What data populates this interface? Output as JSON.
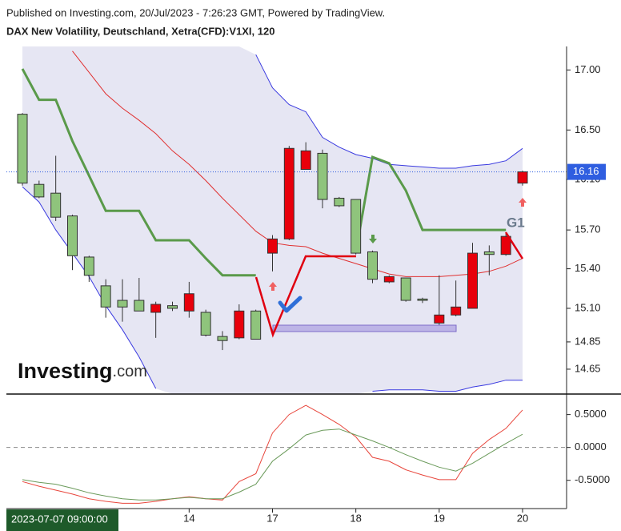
{
  "header": {
    "published": "Published on Investing.com, 20/Jul/2023 - 7:26:23 GMT, Powered by TradingView.",
    "symbol": "DAX New Volatility, Deutschland, Xetra(CFD):V1XI, 120"
  },
  "watermark": {
    "brand": "Investing",
    "suffix": ".com"
  },
  "crosshair_label": "2023-07-07 09:00:00",
  "chart_data": [
    {
      "type": "candlestick",
      "log_scale": true,
      "open": [
        16.63,
        16.06,
        15.99,
        15.81,
        15.49,
        15.27,
        15.16,
        15.16,
        15.07,
        15.12,
        15.08,
        15.07,
        14.89,
        14.88,
        15.08,
        15.52,
        15.63,
        16.18,
        16.31,
        15.95,
        15.94,
        15.53,
        15.3,
        15.33,
        15.17,
        14.99,
        15.05,
        15.1,
        15.53,
        15.51,
        16.07
      ],
      "high": [
        16.64,
        16.09,
        16.29,
        15.82,
        15.5,
        15.32,
        15.32,
        15.33,
        15.15,
        15.15,
        15.3,
        15.09,
        14.93,
        15.13,
        15.09,
        15.66,
        16.37,
        16.4,
        16.34,
        15.96,
        15.94,
        15.54,
        15.35,
        15.33,
        15.18,
        15.35,
        15.31,
        15.6,
        15.58,
        15.67,
        16.17
      ],
      "low": [
        16.05,
        15.95,
        15.77,
        15.39,
        15.3,
        15.03,
        15.0,
        15.08,
        14.88,
        15.08,
        15.03,
        14.89,
        14.79,
        14.87,
        14.87,
        15.38,
        15.62,
        16.18,
        15.87,
        15.88,
        15.51,
        15.29,
        15.29,
        15.15,
        15.14,
        14.96,
        15.04,
        15.1,
        15.35,
        15.5,
        16.05
      ],
      "close": [
        16.07,
        15.96,
        15.8,
        15.5,
        15.35,
        15.11,
        15.11,
        15.08,
        15.13,
        15.1,
        15.21,
        14.9,
        14.86,
        15.08,
        14.87,
        15.63,
        16.35,
        16.33,
        15.94,
        15.89,
        15.52,
        15.32,
        15.34,
        15.16,
        15.16,
        15.05,
        15.11,
        15.52,
        15.51,
        15.65,
        16.16
      ],
      "up_color": "#e8000b",
      "down_color": "#8fc47c",
      "overlays": [
        {
          "color": "#3a3ae0",
          "values": [
            null,
            null,
            null,
            null,
            null,
            null,
            null,
            null,
            null,
            null,
            null,
            null,
            null,
            null,
            17.13,
            16.85,
            16.71,
            16.65,
            16.44,
            16.36,
            16.3,
            16.27,
            16.22,
            16.21,
            16.2,
            16.19,
            16.19,
            16.21,
            16.22,
            16.25,
            16.35
          ]
        },
        {
          "color": "#3a3ae0",
          "values": [
            16.04,
            15.92,
            15.7,
            15.52,
            15.34,
            15.12,
            14.94,
            14.74,
            14.51,
            null,
            null,
            null,
            null,
            null,
            null,
            null,
            null,
            null,
            null,
            null,
            null,
            14.49,
            14.5,
            14.5,
            14.5,
            14.49,
            14.49,
            14.52,
            14.54,
            14.57,
            14.57
          ]
        },
        {
          "color": "#e03030",
          "values": [
            null,
            null,
            null,
            17.16,
            16.98,
            16.8,
            16.68,
            16.58,
            16.47,
            16.33,
            16.22,
            16.09,
            15.95,
            15.82,
            15.69,
            15.6,
            15.58,
            15.57,
            15.52,
            15.48,
            15.44,
            15.4,
            15.36,
            15.34,
            15.34,
            15.34,
            15.35,
            15.36,
            15.38,
            15.42,
            15.48
          ]
        },
        {
          "color": "#5a9a4a",
          "values": [
            17.01,
            16.75,
            16.75,
            16.41,
            16.13,
            15.85,
            15.85,
            15.85,
            15.62,
            15.62,
            15.62,
            15.48,
            15.35,
            15.35,
            15.35,
            null,
            null,
            null,
            null,
            null,
            15.53,
            16.28,
            16.23,
            16.01,
            15.7,
            15.7,
            15.7,
            15.7,
            15.7,
            15.7,
            null
          ]
        }
      ],
      "ylim": [
        14.47,
        17.2
      ],
      "yticks": [
        {
          "value": 14.65,
          "label": "14.65"
        },
        {
          "value": 14.85,
          "label": "14.85"
        },
        {
          "value": 15.1,
          "label": "15.10"
        },
        {
          "value": 15.4,
          "label": "15.40"
        },
        {
          "value": 15.7,
          "label": "15.70"
        },
        {
          "value": 16.1,
          "label": "16.10"
        },
        {
          "value": 16.5,
          "label": "16.50"
        },
        {
          "value": 17,
          "label": "17.00"
        }
      ],
      "last_price": 16.16,
      "last_price_color": "#2f5ee0",
      "annotation": "G1"
    },
    {
      "type": "line",
      "categories": [
        null,
        null,
        null,
        null,
        null,
        null,
        null,
        null,
        null,
        null,
        "14",
        null,
        null,
        null,
        null,
        "17",
        null,
        null,
        null,
        null,
        "18",
        null,
        null,
        null,
        null,
        "19",
        null,
        null,
        null,
        null,
        "20"
      ],
      "series": [
        {
          "color": "#e8463c",
          "values": [
            -0.52,
            -0.59,
            -0.65,
            -0.71,
            -0.78,
            -0.82,
            -0.85,
            -0.85,
            -0.82,
            -0.78,
            -0.75,
            -0.78,
            -0.8,
            -0.52,
            -0.4,
            0.22,
            0.5,
            0.64,
            0.5,
            0.35,
            0.16,
            -0.15,
            -0.21,
            -0.34,
            -0.42,
            -0.49,
            -0.49,
            -0.09,
            0.12,
            0.29,
            0.57
          ]
        },
        {
          "color": "#6a9a5a",
          "values": [
            -0.49,
            -0.53,
            -0.56,
            -0.62,
            -0.69,
            -0.74,
            -0.78,
            -0.8,
            -0.8,
            -0.78,
            -0.76,
            -0.78,
            -0.78,
            -0.68,
            -0.56,
            -0.21,
            -0.02,
            0.19,
            0.26,
            0.28,
            0.19,
            0.1,
            0,
            -0.11,
            -0.21,
            -0.3,
            -0.36,
            -0.24,
            -0.09,
            0.06,
            0.2
          ]
        }
      ],
      "ylim": [
        -0.93,
        0.8
      ],
      "yticks": [
        {
          "value": -0.5,
          "label": "-0.5000"
        },
        {
          "value": 0,
          "label": "0.0000"
        },
        {
          "value": 0.5,
          "label": "0.5000"
        }
      ]
    }
  ]
}
